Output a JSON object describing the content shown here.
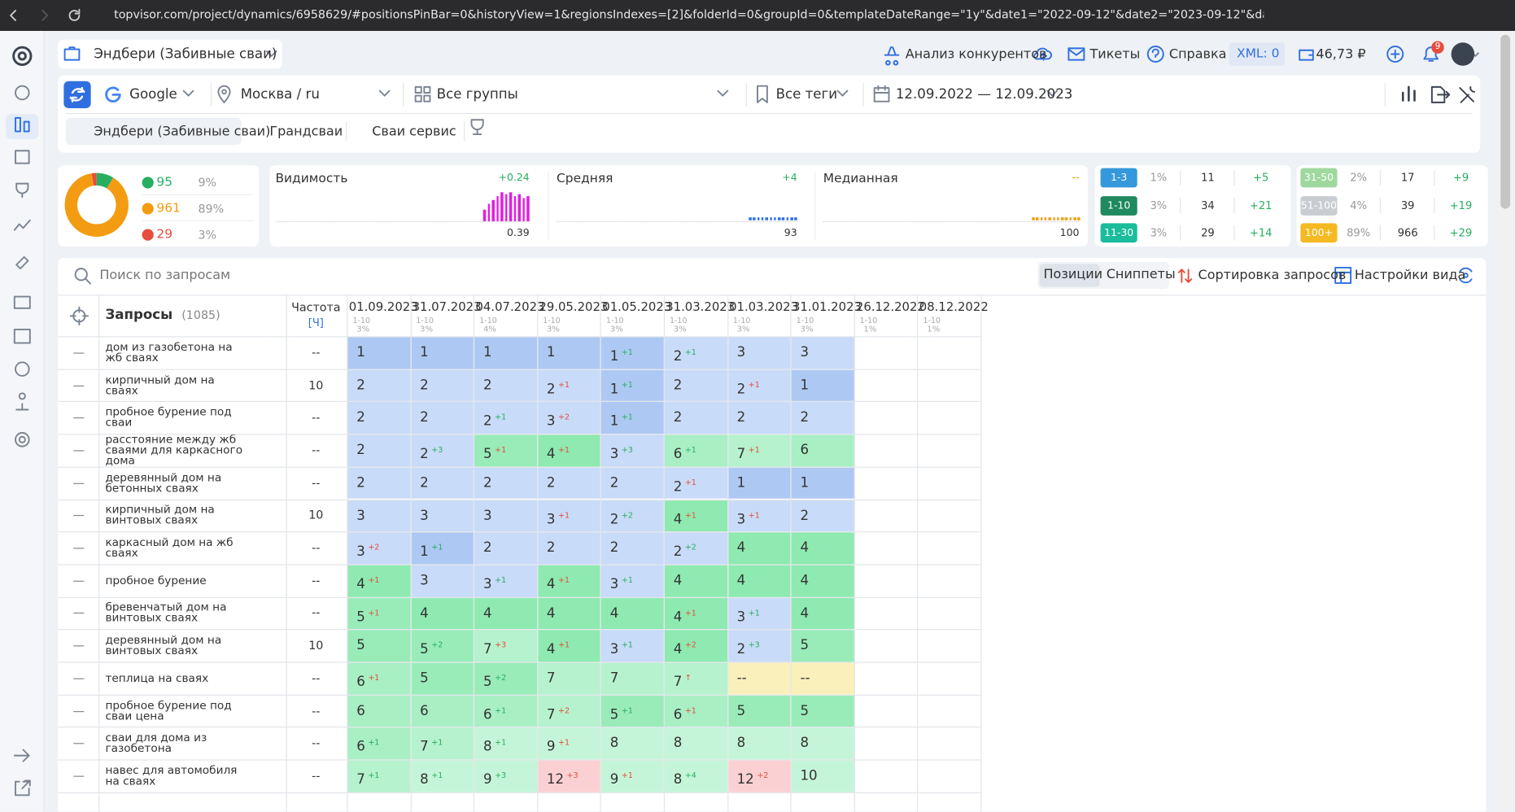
{
  "browser": {
    "url": "topvisor.com/project/dynamics/6958629/#positionsPinBar=0&historyView=1&regionsIndexes=[2]&folderId=0&groupId=0&templateDateRange=\"1y\"&date1=\"2022-09-12\"&date2=\"2023-09-12\"&dates=[]&typeRange=2&typeRangeCompare=7"
  },
  "header": {
    "project": "Эндбери (Забивные сваи)",
    "competitors": "Анализ конкурентов",
    "tickets": "Тикеты",
    "help": "Справка",
    "xml": "XML: 0",
    "balance": "46,73 ₽",
    "notifications": "9"
  },
  "toolbar": {
    "engine": "Google",
    "region": "Москва / ru",
    "groups": "Все группы",
    "tags": "Все теги",
    "dates": "12.09.2022 — 12.09.2023",
    "tabs": [
      "Эндбери (Забивные сваи)",
      "Грандсваи",
      "Сваи сервис"
    ]
  },
  "summary": {
    "items": [
      {
        "count": 95,
        "share": "9%",
        "color": "#27ae60"
      },
      {
        "count": 961,
        "share": "89%",
        "color": "#f39c12"
      },
      {
        "count": 29,
        "share": "3%",
        "color": "#e74c3c"
      }
    ]
  },
  "metrics": [
    {
      "title": "Видимость",
      "change": "+0.24",
      "value": "0.39",
      "change_color": "#27ae60"
    },
    {
      "title": "Средняя",
      "change": "+4",
      "value": "93",
      "change_color": "#27ae60"
    },
    {
      "title": "Медианная",
      "change": "--",
      "value": "100",
      "change_color": "#f39c12"
    }
  ],
  "ranges": [
    {
      "label": "1-3",
      "share": "1%",
      "count": "11",
      "change": "+5",
      "color": "#3498db"
    },
    {
      "label": "1-10",
      "share": "3%",
      "count": "34",
      "change": "+21",
      "color": "#1e8a5e"
    },
    {
      "label": "11-30",
      "share": "3%",
      "count": "29",
      "change": "+14",
      "color": "#1abc9c"
    },
    {
      "label": "31-50",
      "share": "2%",
      "count": "17",
      "change": "+9",
      "color": "#9fd89f"
    },
    {
      "label": "51-100",
      "share": "4%",
      "count": "39",
      "change": "+19",
      "color": "#c9cdd2"
    },
    {
      "label": "100+",
      "share": "89%",
      "count": "966",
      "change": "+29",
      "color": "#f5b921"
    }
  ],
  "search": {
    "placeholder": "Поиск по запросам",
    "tabs": [
      "Позиции",
      "Сниппеты"
    ],
    "sort": "Сортировка запросов",
    "view": "Настройки вида"
  },
  "table": {
    "query_header": "Запросы",
    "query_count": "(1085)",
    "freq_header": "Частота",
    "freq_mode": "[Ч]",
    "dates": [
      {
        "date": "01.09.2023",
        "range": "1-10",
        "share": "3%"
      },
      {
        "date": "31.07.2023",
        "range": "1-10",
        "share": "3%"
      },
      {
        "date": "04.07.2023",
        "range": "1-10",
        "share": "4%"
      },
      {
        "date": "29.05.2023",
        "range": "1-10",
        "share": "3%"
      },
      {
        "date": "01.05.2023",
        "range": "1-10",
        "share": "3%"
      },
      {
        "date": "31.03.2023",
        "range": "1-10",
        "share": "3%"
      },
      {
        "date": "01.03.2023",
        "range": "1-10",
        "share": "3%"
      },
      {
        "date": "31.01.2023",
        "range": "1-10",
        "share": "3%"
      },
      {
        "date": "26.12.2022",
        "range": "1-10",
        "share": "1%"
      },
      {
        "date": "08.12.2022",
        "range": "1-10",
        "share": "1%"
      }
    ],
    "rows": [
      {
        "query": "дом из газобетона на жб сваях",
        "freq": "--",
        "cells": [
          {
            "pos": "1"
          },
          {
            "pos": "1"
          },
          {
            "pos": "1"
          },
          {
            "pos": "1"
          },
          {
            "pos": "1",
            "delta": "+1",
            "delta_color": "#27ae60"
          },
          {
            "pos": "2",
            "delta": "+1",
            "delta_color": "#27ae60"
          },
          {
            "pos": "3"
          },
          {
            "pos": "3"
          }
        ]
      },
      {
        "query": "кирпичный дом на сваях",
        "freq": "10",
        "cells": [
          {
            "pos": "2"
          },
          {
            "pos": "2"
          },
          {
            "pos": "2"
          },
          {
            "pos": "2",
            "delta": "+1",
            "delta_color": "#e74c3c"
          },
          {
            "pos": "1",
            "delta": "+1",
            "delta_color": "#27ae60"
          },
          {
            "pos": "2"
          },
          {
            "pos": "2",
            "delta": "+1",
            "delta_color": "#e74c3c"
          },
          {
            "pos": "1"
          }
        ]
      },
      {
        "query": "пробное бурение под сваи",
        "freq": "--",
        "cells": [
          {
            "pos": "2"
          },
          {
            "pos": "2"
          },
          {
            "pos": "2",
            "delta": "+1",
            "delta_color": "#27ae60"
          },
          {
            "pos": "3",
            "delta": "+2",
            "delta_color": "#e74c3c"
          },
          {
            "pos": "1",
            "delta": "+1",
            "delta_color": "#27ae60"
          },
          {
            "pos": "2"
          },
          {
            "pos": "2"
          },
          {
            "pos": "2"
          }
        ]
      },
      {
        "query": "расстояние между жб сваями для каркасного дома",
        "freq": "--",
        "cells": [
          {
            "pos": "2"
          },
          {
            "pos": "2",
            "delta": "+3",
            "delta_color": "#27ae60"
          },
          {
            "pos": "5",
            "delta": "+1",
            "delta_color": "#e74c3c"
          },
          {
            "pos": "4",
            "delta": "+1",
            "delta_color": "#e74c3c"
          },
          {
            "pos": "3",
            "delta": "+3",
            "delta_color": "#27ae60"
          },
          {
            "pos": "6",
            "delta": "+1",
            "delta_color": "#27ae60"
          },
          {
            "pos": "7",
            "delta": "+1",
            "delta_color": "#e74c3c"
          },
          {
            "pos": "6"
          }
        ]
      },
      {
        "query": "деревянный дом на бетонных сваях",
        "freq": "--",
        "cells": [
          {
            "pos": "2"
          },
          {
            "pos": "2"
          },
          {
            "pos": "2"
          },
          {
            "pos": "2"
          },
          {
            "pos": "2"
          },
          {
            "pos": "2",
            "delta": "+1",
            "delta_color": "#e74c3c"
          },
          {
            "pos": "1"
          },
          {
            "pos": "1"
          }
        ]
      },
      {
        "query": "кирпичный дом на винтовых сваях",
        "freq": "10",
        "cells": [
          {
            "pos": "3"
          },
          {
            "pos": "3"
          },
          {
            "pos": "3"
          },
          {
            "pos": "3",
            "delta": "+1",
            "delta_color": "#e74c3c"
          },
          {
            "pos": "2",
            "delta": "+2",
            "delta_color": "#27ae60"
          },
          {
            "pos": "4",
            "delta": "+1",
            "delta_color": "#e74c3c"
          },
          {
            "pos": "3",
            "delta": "+1",
            "delta_color": "#e74c3c"
          },
          {
            "pos": "2"
          }
        ]
      },
      {
        "query": "каркасный дом на жб сваях",
        "freq": "--",
        "cells": [
          {
            "pos": "3",
            "delta": "+2",
            "delta_color": "#e74c3c"
          },
          {
            "pos": "1",
            "delta": "+1",
            "delta_color": "#27ae60"
          },
          {
            "pos": "2"
          },
          {
            "pos": "2"
          },
          {
            "pos": "2"
          },
          {
            "pos": "2",
            "delta": "+2",
            "delta_color": "#27ae60"
          },
          {
            "pos": "4"
          },
          {
            "pos": "4"
          }
        ]
      },
      {
        "query": "пробное бурение",
        "freq": "--",
        "cells": [
          {
            "pos": "4",
            "delta": "+1",
            "delta_color": "#e74c3c"
          },
          {
            "pos": "3"
          },
          {
            "pos": "3",
            "delta": "+1",
            "delta_color": "#27ae60"
          },
          {
            "pos": "4",
            "delta": "+1",
            "delta_color": "#e74c3c"
          },
          {
            "pos": "3",
            "delta": "+1",
            "delta_color": "#27ae60"
          },
          {
            "pos": "4"
          },
          {
            "pos": "4"
          },
          {
            "pos": "4"
          }
        ]
      },
      {
        "query": "бревенчатый дом на винтовых сваях",
        "freq": "--",
        "cells": [
          {
            "pos": "5",
            "delta": "+1",
            "delta_color": "#e74c3c"
          },
          {
            "pos": "4"
          },
          {
            "pos": "4"
          },
          {
            "pos": "4"
          },
          {
            "pos": "4"
          },
          {
            "pos": "4",
            "delta": "+1",
            "delta_color": "#e74c3c"
          },
          {
            "pos": "3",
            "delta": "+1",
            "delta_color": "#27ae60"
          },
          {
            "pos": "4"
          }
        ]
      },
      {
        "query": "деревянный дом на винтовых сваях",
        "freq": "10",
        "cells": [
          {
            "pos": "5"
          },
          {
            "pos": "5",
            "delta": "+2",
            "delta_color": "#27ae60"
          },
          {
            "pos": "7",
            "delta": "+3",
            "delta_color": "#e74c3c"
          },
          {
            "pos": "4",
            "delta": "+1",
            "delta_color": "#e74c3c"
          },
          {
            "pos": "3",
            "delta": "+1",
            "delta_color": "#27ae60"
          },
          {
            "pos": "4",
            "delta": "+2",
            "delta_color": "#e74c3c"
          },
          {
            "pos": "2",
            "delta": "+3",
            "delta_color": "#27ae60"
          },
          {
            "pos": "5"
          }
        ]
      },
      {
        "query": "теплица на сваях",
        "freq": "--",
        "cells": [
          {
            "pos": "6",
            "delta": "+1",
            "delta_color": "#e74c3c"
          },
          {
            "pos": "5"
          },
          {
            "pos": "5",
            "delta": "+2",
            "delta_color": "#27ae60"
          },
          {
            "pos": "7"
          },
          {
            "pos": "7"
          },
          {
            "pos": "7",
            "delta": "↑",
            "delta_color": "#e74c3c"
          },
          {
            "pos": "--"
          },
          {
            "pos": "--"
          }
        ]
      },
      {
        "query": "пробное бурение под сваи цена",
        "freq": "--",
        "cells": [
          {
            "pos": "6"
          },
          {
            "pos": "6"
          },
          {
            "pos": "6",
            "delta": "+1",
            "delta_color": "#27ae60"
          },
          {
            "pos": "7",
            "delta": "+2",
            "delta_color": "#e74c3c"
          },
          {
            "pos": "5",
            "delta": "+1",
            "delta_color": "#27ae60"
          },
          {
            "pos": "6",
            "delta": "+1",
            "delta_color": "#e74c3c"
          },
          {
            "pos": "5"
          },
          {
            "pos": "5"
          }
        ]
      },
      {
        "query": "сваи для дома из газобетона",
        "freq": "--",
        "cells": [
          {
            "pos": "6",
            "delta": "+1",
            "delta_color": "#27ae60"
          },
          {
            "pos": "7",
            "delta": "+1",
            "delta_color": "#27ae60"
          },
          {
            "pos": "8",
            "delta": "+1",
            "delta_color": "#27ae60"
          },
          {
            "pos": "9",
            "delta": "+1",
            "delta_color": "#e74c3c"
          },
          {
            "pos": "8"
          },
          {
            "pos": "8"
          },
          {
            "pos": "8"
          },
          {
            "pos": "8"
          }
        ]
      },
      {
        "query": "навес для автомобиля на сваях",
        "freq": "--",
        "cells": [
          {
            "pos": "7",
            "delta": "+1",
            "delta_color": "#27ae60"
          },
          {
            "pos": "8",
            "delta": "+1",
            "delta_color": "#27ae60"
          },
          {
            "pos": "9",
            "delta": "+3",
            "delta_color": "#27ae60"
          },
          {
            "pos": "12",
            "delta": "+3",
            "delta_color": "#e74c3c"
          },
          {
            "pos": "9",
            "delta": "+1",
            "delta_color": "#e74c3c"
          },
          {
            "pos": "8",
            "delta": "+4",
            "delta_color": "#27ae60"
          },
          {
            "pos": "12",
            "delta": "+2",
            "delta_color": "#e74c3c"
          },
          {
            "pos": "10"
          }
        ]
      }
    ]
  }
}
